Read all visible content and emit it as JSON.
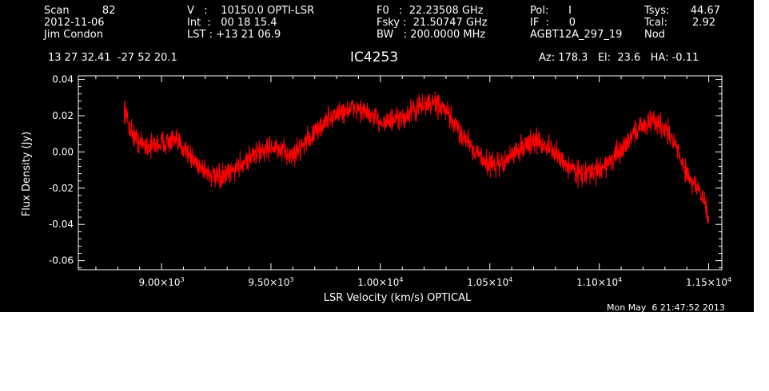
{
  "header": {
    "col1": [
      "Scan          82",
      "2012-11-06",
      "Jim Condon"
    ],
    "col2": [
      "V   :    10150.0 OPTI-LSR",
      "Int  :   00 18 15.4",
      "LST : +13 21 06.9"
    ],
    "col3": [
      "F0   :  22.23508 GHz",
      "Fsky :  21.50747 GHz",
      "BW   : 200.0000 MHz"
    ],
    "col4": [
      "Pol:      I",
      "IF  :      0",
      "AGBT12A_297_19"
    ],
    "col5": [
      "Tsys:",
      "Tcal:",
      "Nod"
    ],
    "col6": [
      "44.67",
      "2.92",
      ""
    ],
    "coords": "13 27 32.41  -27 52 20.1",
    "source": "IC4253",
    "azel": "Az: 178.3   El:  23.6   HA: -0.11",
    "timestamp": "Mon May  6 21:47:52 2013"
  },
  "colors": {
    "background": "#000000",
    "foreground": "#ffffff",
    "series": "#ff0000"
  },
  "chart_data": {
    "type": "line",
    "xlabel": "LSR Velocity (km/s) OPTICAL",
    "ylabel": "Flux Density (Jy)",
    "xlim": [
      8620,
      11560
    ],
    "ylim": [
      -0.065,
      0.042
    ],
    "x_ticks": [
      {
        "value": 9000,
        "mant": "9.00×10",
        "exp": "3"
      },
      {
        "value": 9500,
        "mant": "9.50×10",
        "exp": "3"
      },
      {
        "value": 10000,
        "mant": "1.00×10",
        "exp": "4"
      },
      {
        "value": 10500,
        "mant": "1.05×10",
        "exp": "4"
      },
      {
        "value": 11000,
        "mant": "1.10×10",
        "exp": "4"
      },
      {
        "value": 11500,
        "mant": "1.15×10",
        "exp": "4"
      }
    ],
    "y_ticks": [
      {
        "value": 0.04,
        "label": "0.04"
      },
      {
        "value": 0.02,
        "label": "0.02"
      },
      {
        "value": 0.0,
        "label": "0.00"
      },
      {
        "value": -0.02,
        "label": "-0.02"
      },
      {
        "value": -0.04,
        "label": "-0.04"
      },
      {
        "value": -0.06,
        "label": "-0.06"
      }
    ],
    "grid": false,
    "noise_amplitude_jy": 0.004,
    "series": [
      {
        "x": [
          8830,
          8850,
          8870,
          8900,
          8950,
          9000,
          9050,
          9100,
          9150,
          9200,
          9250,
          9300,
          9350,
          9400,
          9450,
          9500,
          9550,
          9600,
          9650,
          9700,
          9750,
          9800,
          9850,
          9900,
          9950,
          10000,
          10050,
          10100,
          10150,
          10200,
          10250,
          10300,
          10350,
          10400,
          10450,
          10500,
          10550,
          10600,
          10650,
          10700,
          10750,
          10800,
          10850,
          10900,
          10950,
          11000,
          11050,
          11100,
          11150,
          11200,
          11250,
          11300,
          11350,
          11400,
          11450,
          11480,
          11500
        ],
        "y": [
          0.025,
          0.015,
          0.01,
          0.005,
          0.003,
          0.005,
          0.006,
          0.003,
          -0.005,
          -0.01,
          -0.015,
          -0.013,
          -0.008,
          -0.003,
          0.0,
          0.003,
          0.0,
          -0.002,
          0.005,
          0.01,
          0.017,
          0.021,
          0.023,
          0.024,
          0.02,
          0.017,
          0.017,
          0.018,
          0.023,
          0.026,
          0.027,
          0.022,
          0.013,
          0.006,
          -0.002,
          -0.007,
          -0.007,
          -0.002,
          0.003,
          0.006,
          0.004,
          -0.001,
          -0.007,
          -0.011,
          -0.012,
          -0.01,
          -0.005,
          0.0,
          0.01,
          0.015,
          0.017,
          0.014,
          0.003,
          -0.012,
          -0.02,
          -0.028,
          -0.038
        ]
      }
    ]
  }
}
